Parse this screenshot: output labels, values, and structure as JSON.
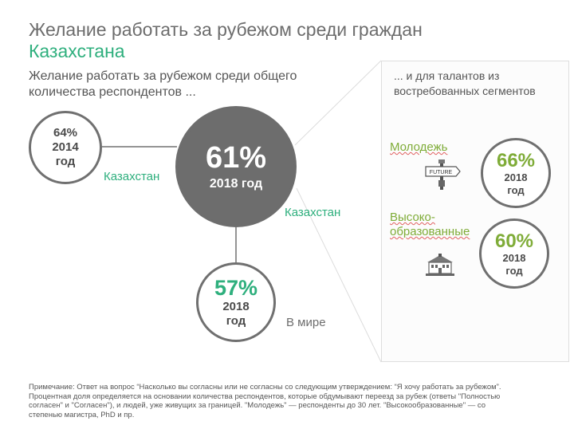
{
  "header": {
    "title_line1": "Желание работать за рубежом среди граждан",
    "title_line2": "Казахстана"
  },
  "subtitle": "Желание работать за рубежом среди общего количества респондентов ...",
  "kz_2014": {
    "pct": "64%",
    "year": "2014",
    "year_word": "год"
  },
  "kz_2018": {
    "pct": "61%",
    "year": "2018 год"
  },
  "world_2018": {
    "pct": "57%",
    "year": "2018",
    "year_word": "год"
  },
  "labels": {
    "kazakhstan_left": "Казахстан",
    "kazakhstan_right": "Казахстан",
    "world": "В мире"
  },
  "panel": {
    "title": "... и для талантов из востребованных сегментов",
    "youth": {
      "label": "Молодежь",
      "sign_text": "FUTURE",
      "icon": "future-signpost-icon",
      "pct": "66%",
      "year": "2018",
      "year_word": "год"
    },
    "educated": {
      "label_line1": "Высоко-",
      "label_line2": "образованные",
      "icon": "university-building-icon",
      "pct": "60%",
      "year": "2018",
      "year_word": "год"
    }
  },
  "note": "Примечание: Ответ на вопрос “Насколько вы согласны или не согласны со следующим утверждением: “Я хочу работать за рубежом”. Процентная доля определяется на основании количества респондентов, которые обдумывают переезд за рубеж (ответы \"Полностью согласен\" и \"Согласен\"), и людей, уже живущих за границей. \"Молодежь\" — респонденты до 30 лет. \"Высокообразованные\" — со степенью магистра, PhD и пр.",
  "colors": {
    "accent_green": "#2eaf7d",
    "segment_green": "#7fac38",
    "circle_gray": "#6d6d6d"
  }
}
